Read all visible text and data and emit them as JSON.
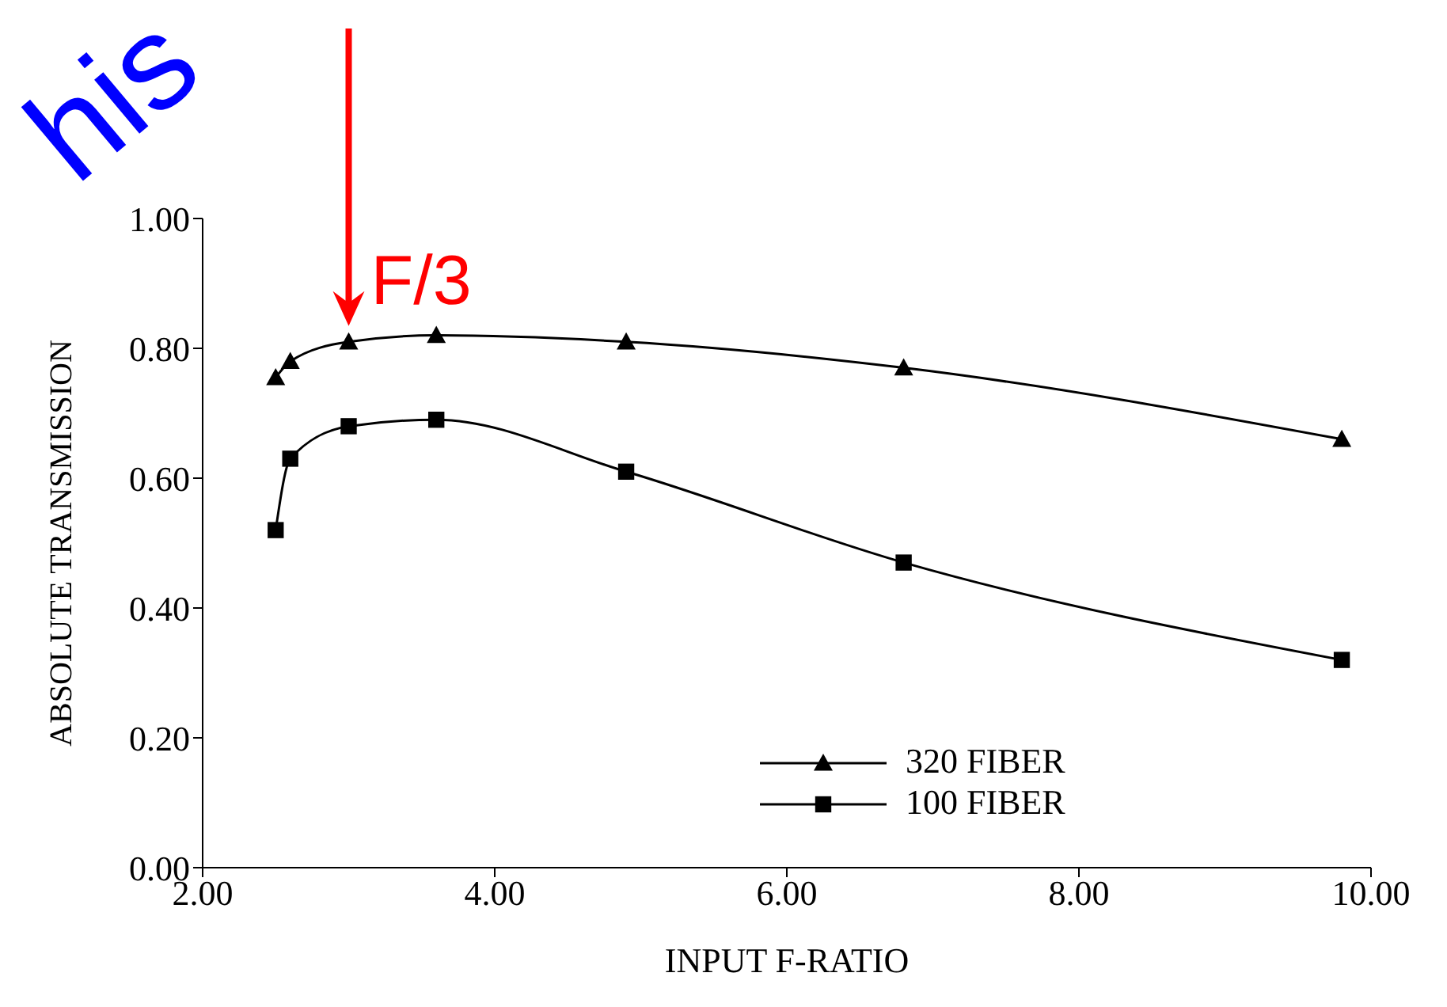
{
  "chart_data": {
    "type": "line",
    "xlabel": "INPUT F-RATIO",
    "ylabel": "ABSOLUTE TRANSMISSION",
    "x": [
      2.5,
      2.6,
      3.0,
      3.6,
      4.9,
      6.8,
      9.8
    ],
    "series": [
      {
        "name": "320 FIBER",
        "color": "#000000",
        "marker": "triangle",
        "values": [
          0.755,
          0.78,
          0.81,
          0.82,
          0.81,
          0.77,
          0.66
        ]
      },
      {
        "name": "100 FIBER",
        "color": "#000000",
        "marker": "square",
        "values": [
          0.52,
          0.63,
          0.68,
          0.69,
          0.61,
          0.47,
          0.32
        ]
      }
    ],
    "xlim": [
      2,
      10
    ],
    "xticks": [
      {
        "value": 2,
        "label": "2.00"
      },
      {
        "value": 4,
        "label": "4.00"
      },
      {
        "value": 6,
        "label": "6.00"
      },
      {
        "value": 8,
        "label": "8.00"
      },
      {
        "value": 10,
        "label": "10.00"
      }
    ],
    "ylim": [
      0,
      1
    ],
    "yticks": [
      {
        "value": 0,
        "label": "0.00"
      },
      {
        "value": 0.2,
        "label": "0.20"
      },
      {
        "value": 0.4,
        "label": "0.40"
      },
      {
        "value": 0.6,
        "label": "0.60"
      },
      {
        "value": 0.8,
        "label": "0.80"
      },
      {
        "value": 1,
        "label": "1.00"
      }
    ],
    "grid": false,
    "legend": "bottom right",
    "line_style": "solid",
    "annotations": [
      {
        "text": "F/3",
        "x": 3.0,
        "y": 0.81
      },
      "his"
    ]
  }
}
